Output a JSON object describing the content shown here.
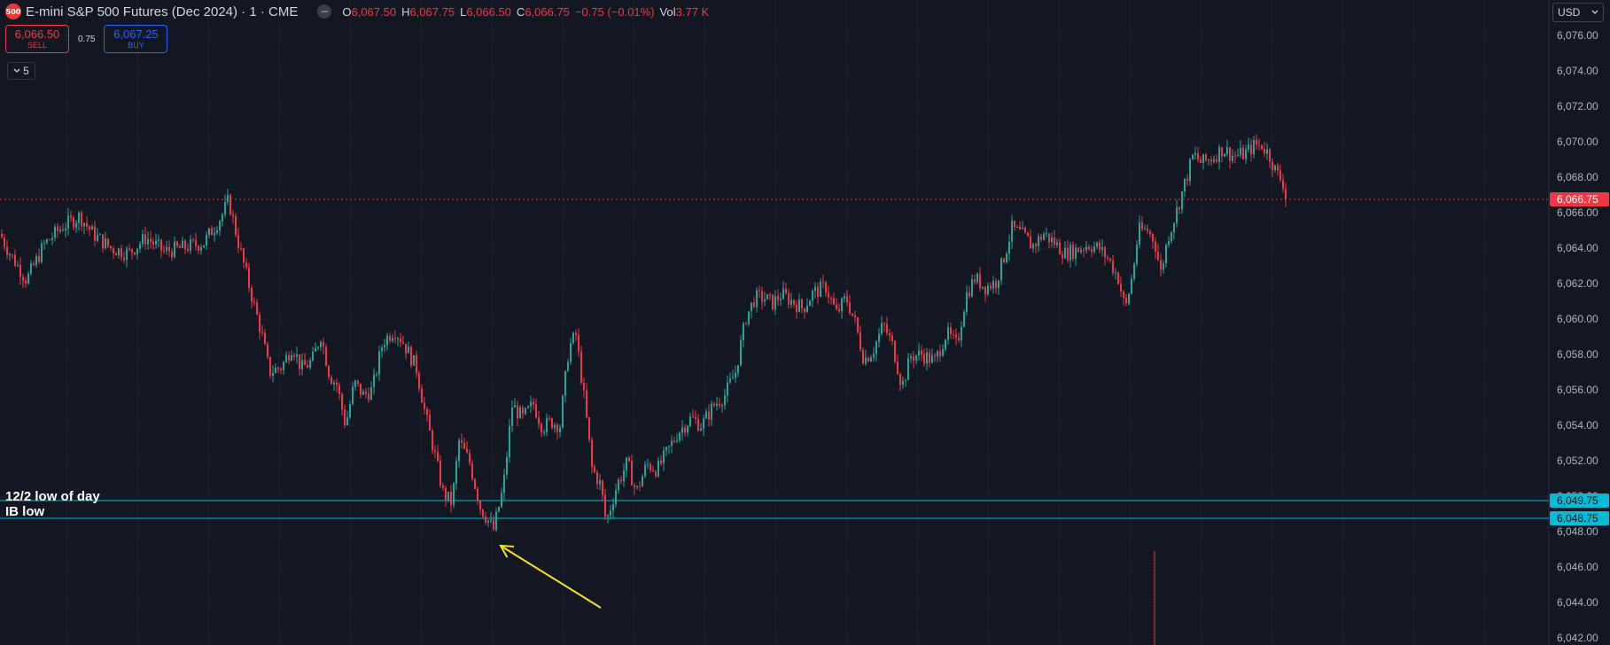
{
  "header": {
    "symbol_badge": "500",
    "title": "E-mini S&P 500 Futures (Dec 2024) · 1 · CME",
    "minus_icon": "minus-icon",
    "ohlc": {
      "o_label": "O",
      "o_value": "6,067.50",
      "h_label": "H",
      "h_value": "6,067.75",
      "l_label": "L",
      "l_value": "6,066.50",
      "c_label": "C",
      "c_value": "6,066.75",
      "change": "−0.75 (−0.01%)",
      "vol_label": "Vol",
      "vol_value": "3.77 K"
    }
  },
  "trade": {
    "sell_price": "6,066.50",
    "sell_label": "SELL",
    "spread": "0.75",
    "buy_price": "6,067.25",
    "buy_label": "BUY"
  },
  "collapse": {
    "icon": "chevron-down-icon",
    "count": "5"
  },
  "currency": {
    "label": "USD",
    "icon": "chevron-down-icon"
  },
  "colors": {
    "background": "#131722",
    "up": "#26a69a",
    "down": "#f23645",
    "hline": "#00bcd4",
    "arrow": "#f5e02c",
    "grid": "#1e222d"
  },
  "chart_data": {
    "type": "candlestick",
    "ylim": [
      6041.6,
      6078.0
    ],
    "price_ticks": [
      "6,076.00",
      "6,074.00",
      "6,072.00",
      "6,070.00",
      "6,068.00",
      "6,066.00",
      "6,064.00",
      "6,062.00",
      "6,060.00",
      "6,058.00",
      "6,056.00",
      "6,054.00",
      "6,052.00",
      "6,050.00",
      "6,048.00",
      "6,046.00",
      "6,044.00",
      "6,042.00"
    ],
    "tick_values": [
      6076,
      6074,
      6072,
      6070,
      6068,
      6066,
      6064,
      6062,
      6060,
      6058,
      6056,
      6054,
      6052,
      6050,
      6048,
      6046,
      6044,
      6042
    ],
    "grid": true,
    "anchors": [
      [
        0,
        6064.8
      ],
      [
        10,
        6063.8
      ],
      [
        30,
        6062.2
      ],
      [
        50,
        6064.2
      ],
      [
        70,
        6065.2
      ],
      [
        90,
        6065.8
      ],
      [
        105,
        6064.8
      ],
      [
        125,
        6064.0
      ],
      [
        145,
        6063.7
      ],
      [
        165,
        6064.6
      ],
      [
        185,
        6063.8
      ],
      [
        205,
        6064.0
      ],
      [
        230,
        6064.3
      ],
      [
        250,
        6065.8
      ],
      [
        258,
        6066.7
      ],
      [
        268,
        6064.5
      ],
      [
        282,
        6061.7
      ],
      [
        296,
        6059.0
      ],
      [
        304,
        6057.0
      ],
      [
        318,
        6057.3
      ],
      [
        330,
        6058.5
      ],
      [
        340,
        6057.2
      ],
      [
        352,
        6057.6
      ],
      [
        362,
        6059.1
      ],
      [
        372,
        6056.8
      ],
      [
        380,
        6056.3
      ],
      [
        390,
        6054.0
      ],
      [
        400,
        6056.4
      ],
      [
        410,
        6055.7
      ],
      [
        420,
        6056.0
      ],
      [
        432,
        6058.7
      ],
      [
        445,
        6059.4
      ],
      [
        455,
        6058.7
      ],
      [
        470,
        6057.2
      ],
      [
        480,
        6054.6
      ],
      [
        490,
        6052.5
      ],
      [
        500,
        6050.2
      ],
      [
        510,
        6049.6
      ],
      [
        518,
        6053.1
      ],
      [
        530,
        6051.9
      ],
      [
        542,
        6049.4
      ],
      [
        557,
        6048.1
      ],
      [
        568,
        6050.5
      ],
      [
        578,
        6055.1
      ],
      [
        590,
        6054.4
      ],
      [
        602,
        6055.2
      ],
      [
        612,
        6053.9
      ],
      [
        622,
        6054.2
      ],
      [
        632,
        6054.0
      ],
      [
        642,
        6058.4
      ],
      [
        650,
        6059.1
      ],
      [
        660,
        6055.2
      ],
      [
        668,
        6051.6
      ],
      [
        678,
        6050.6
      ],
      [
        684,
        6048.5
      ],
      [
        696,
        6050.6
      ],
      [
        708,
        6051.9
      ],
      [
        718,
        6050.2
      ],
      [
        730,
        6051.8
      ],
      [
        742,
        6051.5
      ],
      [
        752,
        6052.4
      ],
      [
        765,
        6053.6
      ],
      [
        780,
        6054.4
      ],
      [
        792,
        6054.0
      ],
      [
        805,
        6055.1
      ],
      [
        818,
        6055.7
      ],
      [
        830,
        6057.0
      ],
      [
        842,
        6060.1
      ],
      [
        852,
        6061.2
      ],
      [
        862,
        6061.2
      ],
      [
        872,
        6060.9
      ],
      [
        882,
        6061.4
      ],
      [
        894,
        6061.0
      ],
      [
        906,
        6060.6
      ],
      [
        918,
        6061.5
      ],
      [
        932,
        6061.8
      ],
      [
        944,
        6060.3
      ],
      [
        955,
        6061.2
      ],
      [
        965,
        6059.8
      ],
      [
        975,
        6057.7
      ],
      [
        985,
        6058.2
      ],
      [
        997,
        6059.7
      ],
      [
        1008,
        6058.4
      ],
      [
        1018,
        6056.2
      ],
      [
        1028,
        6057.9
      ],
      [
        1040,
        6058.0
      ],
      [
        1055,
        6057.6
      ],
      [
        1068,
        6059.2
      ],
      [
        1080,
        6058.5
      ],
      [
        1090,
        6061.3
      ],
      [
        1100,
        6062.3
      ],
      [
        1112,
        6061.8
      ],
      [
        1124,
        6062.1
      ],
      [
        1132,
        6063.3
      ],
      [
        1142,
        6065.1
      ],
      [
        1155,
        6064.7
      ],
      [
        1165,
        6064.1
      ],
      [
        1178,
        6064.8
      ],
      [
        1190,
        6064.3
      ],
      [
        1202,
        6063.7
      ],
      [
        1215,
        6063.9
      ],
      [
        1228,
        6064.2
      ],
      [
        1240,
        6064.0
      ],
      [
        1252,
        6063.3
      ],
      [
        1262,
        6062.3
      ],
      [
        1270,
        6060.5
      ],
      [
        1278,
        6062.5
      ],
      [
        1285,
        6065.0
      ],
      [
        1295,
        6065.0
      ],
      [
        1303,
        6064.4
      ],
      [
        1310,
        6062.6
      ],
      [
        1318,
        6064.6
      ],
      [
        1328,
        6066.1
      ],
      [
        1338,
        6067.8
      ],
      [
        1347,
        6069.3
      ],
      [
        1356,
        6068.8
      ],
      [
        1368,
        6069.1
      ],
      [
        1380,
        6069.6
      ],
      [
        1392,
        6069.2
      ],
      [
        1404,
        6069.3
      ],
      [
        1416,
        6069.8
      ],
      [
        1424,
        6069.8
      ],
      [
        1432,
        6069.3
      ],
      [
        1440,
        6068.3
      ],
      [
        1448,
        6067.7
      ],
      [
        1452,
        6066.8
      ]
    ],
    "last_price": 6066.75,
    "last_price_label": "6,066.75",
    "horizontal_lines": [
      {
        "name": "12/2 low of day",
        "price": 6049.75,
        "label": "6,049.75"
      },
      {
        "name": "IB low",
        "price": 6048.75,
        "label": "6,048.75"
      }
    ],
    "annotation_arrow": {
      "from": [
        678,
        6043.7
      ],
      "to": [
        565,
        6047.2
      ]
    },
    "volume_spike": {
      "x": 1303,
      "from_price": 6046.9,
      "to_price": 6041.6
    }
  }
}
